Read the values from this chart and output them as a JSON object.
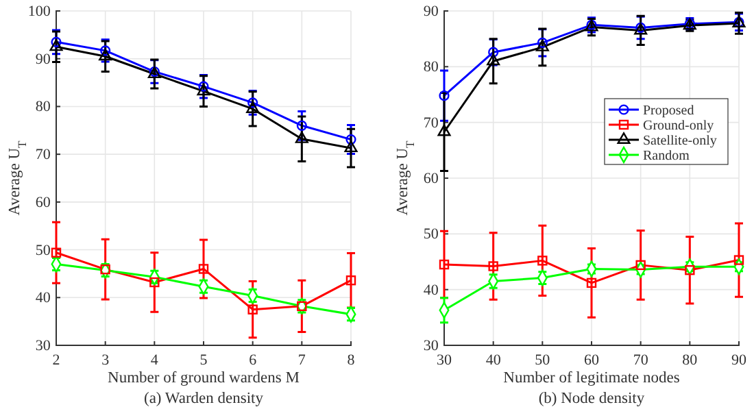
{
  "chart_data": [
    {
      "type": "line",
      "title": "(a) Warden density",
      "xlabel": "Number of ground wardens M",
      "ylabel": "Average U$_{T}$",
      "x": [
        2,
        3,
        4,
        5,
        6,
        7,
        8
      ],
      "xlim": [
        2,
        8
      ],
      "xticks": [
        2,
        3,
        4,
        5,
        6,
        7,
        8
      ],
      "ylim": [
        30,
        100
      ],
      "yticks": [
        30,
        40,
        50,
        60,
        70,
        80,
        90,
        100
      ],
      "grid": true,
      "legend": false,
      "series": [
        {
          "color": "#0000ff",
          "marker": "circle",
          "values": [
            93.5,
            91.7,
            87.3,
            84.2,
            80.8,
            76.0,
            73.1
          ],
          "errors": [
            2.5,
            2.3,
            2.4,
            2.4,
            2.5,
            3,
            3
          ]
        },
        {
          "color": "#ff0000",
          "marker": "square",
          "values": [
            49.4,
            45.9,
            43.2,
            46.0,
            37.5,
            38.2,
            43.6
          ],
          "errors": [
            6.4,
            6.3,
            6.2,
            6.1,
            5.9,
            5.4,
            5.7
          ]
        },
        {
          "color": "#000000",
          "marker": "triangle",
          "values": [
            92.5,
            90.5,
            86.8,
            83.2,
            79.5,
            73.2,
            71.3
          ],
          "errors": [
            3.2,
            3.2,
            3,
            3.2,
            3.6,
            4.7,
            4
          ]
        },
        {
          "color": "#00ff00",
          "marker": "diamond",
          "values": [
            47.0,
            45.7,
            44.3,
            42.3,
            40.4,
            38.2,
            36.5
          ],
          "errors": [
            1.3,
            1.3,
            1.3,
            1.3,
            1.3,
            1.3,
            1.3
          ]
        }
      ]
    },
    {
      "type": "line",
      "title": "(b) Node density",
      "xlabel": "Number of legitimate nodes",
      "ylabel": "Average U$_{T}$",
      "x": [
        30,
        40,
        50,
        60,
        70,
        80,
        90
      ],
      "xlim": [
        30,
        90
      ],
      "xticks": [
        30,
        40,
        50,
        60,
        70,
        80,
        90
      ],
      "ylim": [
        30,
        90
      ],
      "yticks": [
        30,
        40,
        50,
        60,
        70,
        80,
        90
      ],
      "grid": true,
      "legend": "right",
      "series": [
        {
          "name": "Proposed",
          "color": "#0000ff",
          "marker": "circle",
          "values": [
            74.8,
            82.6,
            84.3,
            87.5,
            87.0,
            87.7,
            88.0
          ],
          "errors": [
            4.5,
            2.3,
            2.4,
            1.3,
            2,
            1,
            1.5
          ]
        },
        {
          "name": "Ground-only",
          "color": "#ff0000",
          "marker": "square",
          "values": [
            44.5,
            44.2,
            45.2,
            41.2,
            44.4,
            43.5,
            45.3
          ],
          "errors": [
            6,
            6,
            6.3,
            6.2,
            6.2,
            6,
            6.6
          ]
        },
        {
          "name": "Satellite-only",
          "color": "#000000",
          "marker": "triangle",
          "values": [
            68.3,
            81.0,
            83.5,
            87.1,
            86.5,
            87.4,
            87.8
          ],
          "errors": [
            7,
            4,
            3.3,
            1.5,
            2.6,
            1,
            1.9
          ]
        },
        {
          "name": "Random",
          "color": "#00ff00",
          "marker": "diamond",
          "values": [
            36.3,
            41.5,
            42.1,
            43.7,
            43.6,
            44.1,
            44.1
          ],
          "errors": [
            2.2,
            1.2,
            1.1,
            0.8,
            0.8,
            0.8,
            0.8
          ]
        }
      ]
    }
  ]
}
